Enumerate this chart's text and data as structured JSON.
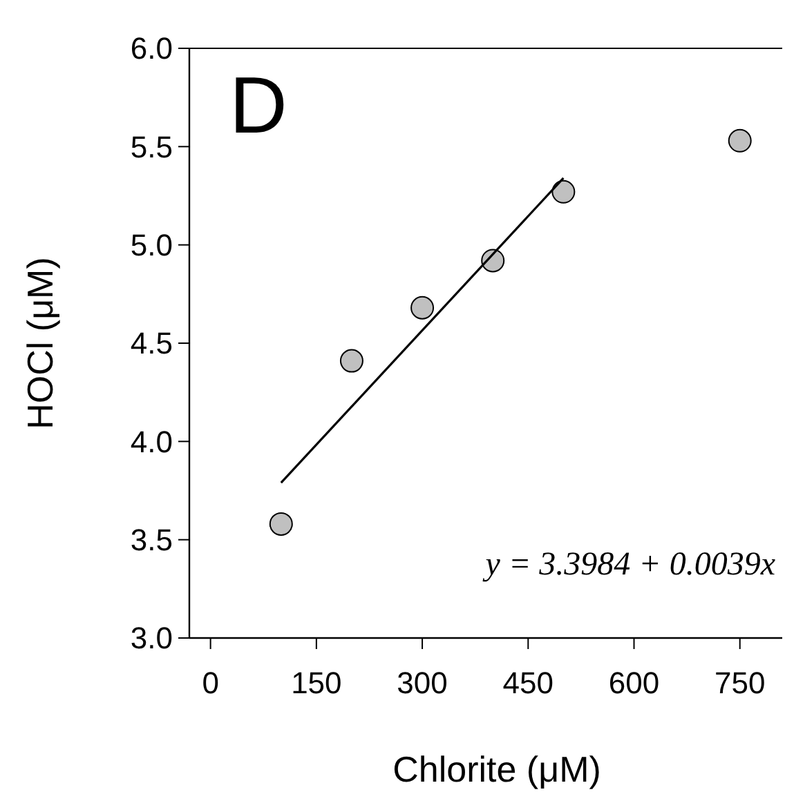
{
  "chart_data": {
    "type": "scatter",
    "xlabel": "Chlorite (μM)",
    "ylabel": "HOCl (μM)",
    "xlim": [
      -30,
      810
    ],
    "xticks": [
      0,
      150,
      300,
      450,
      600,
      750
    ],
    "ylim": [
      3.0,
      6.0
    ],
    "yticks": [
      {
        "value": 3.0,
        "label": "3.0"
      },
      {
        "value": 3.5,
        "label": "3.5"
      },
      {
        "value": 4.0,
        "label": "4.0"
      },
      {
        "value": 4.5,
        "label": "4.5"
      },
      {
        "value": 5.0,
        "label": "5.0"
      },
      {
        "value": 5.5,
        "label": "5.5"
      },
      {
        "value": 6.0,
        "label": "6.0"
      }
    ],
    "grid": false,
    "series": [
      {
        "marker": "circle",
        "color": "#c0c0c0",
        "x": [
          100,
          200,
          300,
          400,
          500,
          750
        ],
        "values": [
          3.58,
          4.41,
          4.68,
          4.92,
          5.27,
          5.53
        ]
      },
      {
        "type": "line",
        "color": "#000000",
        "x": [
          100,
          500
        ],
        "values": [
          3.79,
          5.34
        ]
      }
    ],
    "annotations": [
      "D",
      "y = 3.3984 + 0.0039x"
    ]
  }
}
